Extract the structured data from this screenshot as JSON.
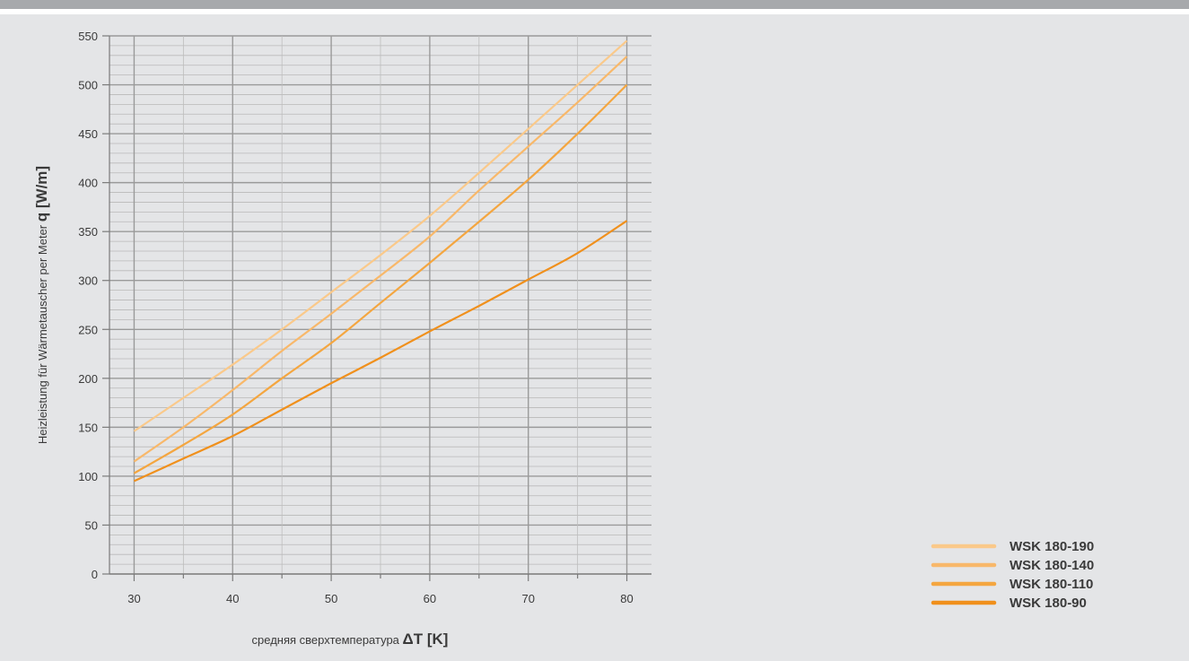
{
  "chart_data": {
    "type": "line",
    "ylabel_prefix": "Heizleistung für Wärmetauscher per Meter",
    "ylabel_symbol": "q [W/m]",
    "xlabel_prefix": "средняя сверхтемпература",
    "xlabel_symbol": "ΔT [K]",
    "xlim": [
      27.5,
      82.5
    ],
    "ylim": [
      0,
      550
    ],
    "x_ticks": [
      30,
      40,
      50,
      60,
      70,
      80
    ],
    "y_ticks": [
      0,
      50,
      100,
      150,
      200,
      250,
      300,
      350,
      400,
      450,
      500,
      550
    ],
    "grid": true,
    "legend_position": "bottom-right",
    "series": [
      {
        "name": "WSK 180-190",
        "color": "#fac98a",
        "x": [
          30,
          35,
          40,
          45,
          50,
          55,
          60,
          65,
          70,
          75,
          80
        ],
        "y": [
          146,
          180,
          214,
          250,
          288,
          326,
          366,
          410,
          455,
          500,
          545
        ]
      },
      {
        "name": "WSK 180-140",
        "color": "#f8b86a",
        "x": [
          30,
          35,
          40,
          45,
          50,
          55,
          60,
          65,
          70,
          75,
          80
        ],
        "y": [
          115,
          150,
          188,
          228,
          266,
          305,
          345,
          392,
          437,
          482,
          529
        ]
      },
      {
        "name": "WSK 180-110",
        "color": "#f4a640",
        "x": [
          30,
          35,
          40,
          45,
          50,
          55,
          60,
          65,
          70,
          75,
          80
        ],
        "y": [
          103,
          132,
          163,
          200,
          236,
          277,
          318,
          360,
          403,
          450,
          500
        ]
      },
      {
        "name": "WSK 180-90",
        "color": "#f0901c",
        "x": [
          30,
          35,
          40,
          45,
          50,
          55,
          60,
          65,
          70,
          75,
          80
        ],
        "y": [
          95,
          118,
          141,
          168,
          195,
          221,
          248,
          274,
          301,
          328,
          361
        ]
      }
    ]
  }
}
